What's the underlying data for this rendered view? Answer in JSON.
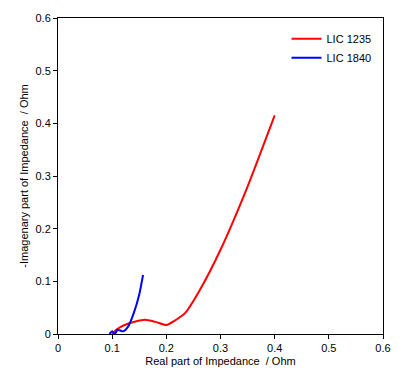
{
  "chart_data": {
    "type": "line",
    "x_label": "Real part of Impedance  / Ohm",
    "y_label": "-Imagenary part of Impedance  / Ohm",
    "xlim": [
      0,
      0.6
    ],
    "xticks": [
      0,
      0.1,
      0.2,
      0.3,
      0.4,
      0.5,
      0.6
    ],
    "ylim": [
      0,
      0.6
    ],
    "yticks": [
      0,
      0.1,
      0.2,
      0.3,
      0.4,
      0.5,
      0.6
    ],
    "grid": false,
    "legend": "top right",
    "series": [
      {
        "name": "LIC 1235",
        "color": "#ff0000",
        "x": [
          0.1,
          0.11,
          0.13,
          0.16,
          0.18,
          0.2,
          0.215,
          0.235,
          0.26,
          0.3,
          0.35,
          0.4
        ],
        "values": [
          0.0,
          0.01,
          0.02,
          0.027,
          0.023,
          0.017,
          0.025,
          0.04,
          0.08,
          0.16,
          0.28,
          0.415
        ]
      },
      {
        "name": "LIC 1840",
        "color": "#0000ff",
        "x": [
          0.095,
          0.1,
          0.105,
          0.11,
          0.12,
          0.13,
          0.14,
          0.15,
          0.157
        ],
        "values": [
          0.0,
          0.005,
          0.0,
          0.008,
          0.005,
          0.015,
          0.04,
          0.075,
          0.112
        ]
      }
    ]
  }
}
